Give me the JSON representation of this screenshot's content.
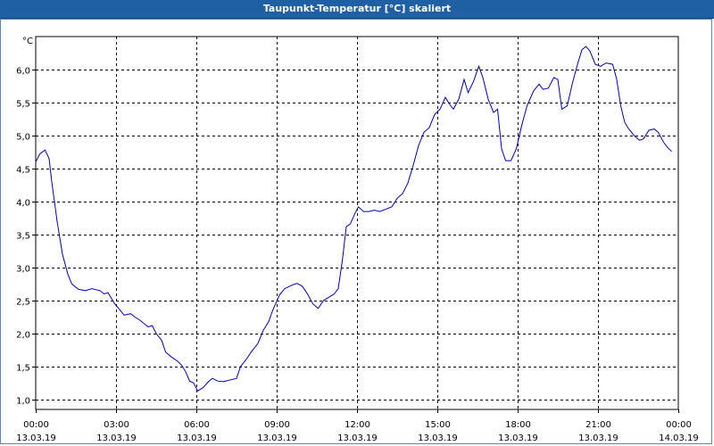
{
  "title": "Taupunkt-Temperatur [°C] skaliert",
  "chart_data": {
    "type": "line",
    "title": "Taupunkt-Temperatur [°C] skaliert",
    "unit": "°C",
    "ylim": [
      0.85,
      6.5
    ],
    "y_ticks": [
      "1,0",
      "1,5",
      "2,0",
      "2,5",
      "3,0",
      "3,5",
      "4,0",
      "4,5",
      "5,0",
      "5,5",
      "6,0"
    ],
    "y_tick_values": [
      1.0,
      1.5,
      2.0,
      2.5,
      3.0,
      3.5,
      4.0,
      4.5,
      5.0,
      5.5,
      6.0
    ],
    "xlim": [
      0,
      24
    ],
    "x_ticks": [
      {
        "time": "00:00",
        "date": "13.03.19"
      },
      {
        "time": "03:00",
        "date": "13.03.19"
      },
      {
        "time": "06:00",
        "date": "13.03.19"
      },
      {
        "time": "09:00",
        "date": "13.03.19"
      },
      {
        "time": "12:00",
        "date": "13.03.19"
      },
      {
        "time": "15:00",
        "date": "13.03.19"
      },
      {
        "time": "18:00",
        "date": "13.03.19"
      },
      {
        "time": "21:00",
        "date": "13.03.19"
      },
      {
        "time": "00:00",
        "date": "14.03.19"
      }
    ],
    "grid": true,
    "series": [
      {
        "color": "#0000c0",
        "points": [
          [
            0.0,
            4.6
          ],
          [
            0.15,
            4.72
          ],
          [
            0.35,
            4.78
          ],
          [
            0.5,
            4.65
          ],
          [
            0.6,
            4.3
          ],
          [
            0.8,
            3.7
          ],
          [
            1.0,
            3.2
          ],
          [
            1.2,
            2.9
          ],
          [
            1.35,
            2.75
          ],
          [
            1.6,
            2.67
          ],
          [
            1.85,
            2.65
          ],
          [
            2.1,
            2.68
          ],
          [
            2.4,
            2.65
          ],
          [
            2.55,
            2.6
          ],
          [
            2.7,
            2.62
          ],
          [
            2.95,
            2.45
          ],
          [
            3.1,
            2.38
          ],
          [
            3.3,
            2.28
          ],
          [
            3.55,
            2.3
          ],
          [
            3.7,
            2.25
          ],
          [
            3.9,
            2.2
          ],
          [
            4.2,
            2.1
          ],
          [
            4.35,
            2.12
          ],
          [
            4.5,
            2.0
          ],
          [
            4.7,
            1.9
          ],
          [
            4.85,
            1.72
          ],
          [
            5.05,
            1.65
          ],
          [
            5.3,
            1.58
          ],
          [
            5.45,
            1.52
          ],
          [
            5.6,
            1.42
          ],
          [
            5.75,
            1.28
          ],
          [
            5.9,
            1.25
          ],
          [
            6.05,
            1.13
          ],
          [
            6.25,
            1.18
          ],
          [
            6.45,
            1.27
          ],
          [
            6.6,
            1.32
          ],
          [
            6.8,
            1.28
          ],
          [
            7.0,
            1.27
          ],
          [
            7.3,
            1.3
          ],
          [
            7.5,
            1.32
          ],
          [
            7.65,
            1.5
          ],
          [
            7.85,
            1.6
          ],
          [
            8.05,
            1.72
          ],
          [
            8.3,
            1.85
          ],
          [
            8.5,
            2.05
          ],
          [
            8.7,
            2.18
          ],
          [
            8.85,
            2.35
          ],
          [
            9.1,
            2.58
          ],
          [
            9.3,
            2.68
          ],
          [
            9.55,
            2.73
          ],
          [
            9.75,
            2.76
          ],
          [
            9.95,
            2.72
          ],
          [
            10.15,
            2.6
          ],
          [
            10.35,
            2.45
          ],
          [
            10.55,
            2.38
          ],
          [
            10.75,
            2.5
          ],
          [
            10.95,
            2.55
          ],
          [
            11.15,
            2.6
          ],
          [
            11.3,
            2.68
          ],
          [
            11.45,
            3.1
          ],
          [
            11.6,
            3.62
          ],
          [
            11.75,
            3.66
          ],
          [
            11.9,
            3.8
          ],
          [
            12.05,
            3.92
          ],
          [
            12.25,
            3.85
          ],
          [
            12.45,
            3.85
          ],
          [
            12.65,
            3.87
          ],
          [
            12.85,
            3.85
          ],
          [
            13.05,
            3.88
          ],
          [
            13.3,
            3.92
          ],
          [
            13.5,
            4.05
          ],
          [
            13.7,
            4.12
          ],
          [
            13.9,
            4.28
          ],
          [
            14.1,
            4.55
          ],
          [
            14.3,
            4.85
          ],
          [
            14.5,
            5.05
          ],
          [
            14.7,
            5.12
          ],
          [
            14.9,
            5.32
          ],
          [
            15.1,
            5.4
          ],
          [
            15.3,
            5.58
          ],
          [
            15.45,
            5.48
          ],
          [
            15.6,
            5.4
          ],
          [
            15.8,
            5.55
          ],
          [
            16.0,
            5.85
          ],
          [
            16.15,
            5.65
          ],
          [
            16.35,
            5.82
          ],
          [
            16.55,
            6.05
          ],
          [
            16.7,
            5.88
          ],
          [
            16.9,
            5.55
          ],
          [
            17.1,
            5.35
          ],
          [
            17.25,
            5.4
          ],
          [
            17.4,
            4.8
          ],
          [
            17.55,
            4.62
          ],
          [
            17.75,
            4.62
          ],
          [
            17.95,
            4.8
          ],
          [
            18.15,
            5.15
          ],
          [
            18.35,
            5.45
          ],
          [
            18.6,
            5.68
          ],
          [
            18.8,
            5.78
          ],
          [
            18.95,
            5.7
          ],
          [
            19.15,
            5.72
          ],
          [
            19.35,
            5.88
          ],
          [
            19.5,
            5.85
          ],
          [
            19.65,
            5.4
          ],
          [
            19.85,
            5.45
          ],
          [
            20.05,
            5.8
          ],
          [
            20.25,
            6.1
          ],
          [
            20.4,
            6.3
          ],
          [
            20.55,
            6.35
          ],
          [
            20.7,
            6.28
          ],
          [
            20.9,
            6.08
          ],
          [
            21.1,
            6.05
          ],
          [
            21.3,
            6.1
          ],
          [
            21.55,
            6.08
          ],
          [
            21.7,
            5.85
          ],
          [
            21.85,
            5.45
          ],
          [
            22.0,
            5.2
          ],
          [
            22.15,
            5.1
          ],
          [
            22.35,
            5.0
          ],
          [
            22.55,
            4.93
          ],
          [
            22.7,
            4.95
          ],
          [
            22.9,
            5.08
          ],
          [
            23.1,
            5.1
          ],
          [
            23.25,
            5.05
          ],
          [
            23.45,
            4.9
          ],
          [
            23.6,
            4.82
          ],
          [
            23.75,
            4.76
          ]
        ]
      }
    ]
  }
}
